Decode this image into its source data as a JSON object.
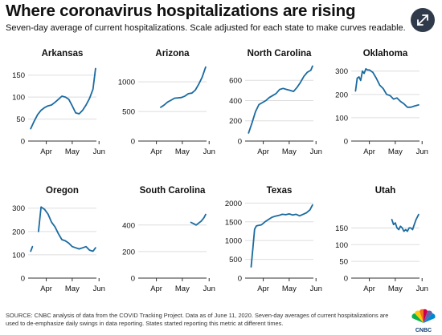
{
  "header": {
    "title": "Where coronavirus hospitalizations are rising",
    "subtitle": "Seven-day average of current hospitalizations. Scale adjusted for each state to make curves readable."
  },
  "controls": {
    "expand_icon": "expand-arrows-icon"
  },
  "footer": {
    "source": "SOURCE: CNBC analysis of data from the COVID Tracking Project. Data as of June 11, 2020. Seven-day averages of current hospitalizations are used to de-emphasize daily swings in data reporting. States started reporting this metric at different times.",
    "logo_text": "CNBC",
    "logo_icon": "peacock-logo-icon"
  },
  "colors": {
    "line": "#1a6aa0",
    "grid": "#dddddd",
    "axis": "#333333",
    "text": "#111111"
  },
  "chart_data": [
    {
      "type": "line",
      "title": "Arkansas",
      "x_ticks": [
        "Apr",
        "May",
        "Jun"
      ],
      "ylim": [
        0,
        175
      ],
      "y_ticks": [
        0,
        50,
        100,
        150
      ],
      "series": [
        {
          "x": [
            "Mar 28",
            "Apr 1",
            "Apr 5",
            "Apr 9",
            "Apr 13",
            "Apr 17",
            "Apr 21",
            "Apr 25",
            "Apr 29",
            "May 3",
            "May 7",
            "May 11",
            "May 15",
            "May 19",
            "May 23",
            "May 27",
            "May 31",
            "Jun 4",
            "Jun 8",
            "Jun 11"
          ],
          "y": [
            28,
            45,
            60,
            70,
            76,
            80,
            82,
            88,
            95,
            102,
            100,
            95,
            80,
            64,
            62,
            70,
            82,
            97,
            118,
            165
          ]
        }
      ]
    },
    {
      "type": "line",
      "title": "Arizona",
      "x_ticks": [
        "Apr",
        "May",
        "Jun"
      ],
      "ylim": [
        0,
        1300
      ],
      "y_ticks": [
        0,
        500,
        1000
      ],
      "series": [
        {
          "x": [
            "Apr 20",
            "Apr 24",
            "Apr 28",
            "May 2",
            "May 6",
            "May 10",
            "May 14",
            "May 18",
            "May 22",
            "May 26",
            "May 30",
            "Jun 3",
            "Jun 7",
            "Jun 11"
          ],
          "y": [
            570,
            610,
            660,
            690,
            725,
            730,
            735,
            760,
            800,
            810,
            860,
            960,
            1080,
            1250
          ]
        }
      ]
    },
    {
      "type": "line",
      "title": "North Carolina",
      "x_ticks": [
        "Apr",
        "May",
        "Jun"
      ],
      "ylim": [
        0,
        760
      ],
      "y_ticks": [
        0,
        200,
        400,
        600
      ],
      "series": [
        {
          "x": [
            "Mar 29",
            "Apr 2",
            "Apr 6",
            "Apr 10",
            "Apr 14",
            "Apr 18",
            "Apr 22",
            "Apr 26",
            "Apr 30",
            "May 4",
            "May 8",
            "May 12",
            "May 16",
            "May 20",
            "May 24",
            "May 28",
            "Jun 1",
            "Jun 5",
            "Jun 9",
            "Jun 11"
          ],
          "y": [
            80,
            180,
            290,
            360,
            380,
            400,
            430,
            450,
            470,
            510,
            520,
            510,
            500,
            490,
            530,
            580,
            640,
            680,
            700,
            740
          ]
        }
      ]
    },
    {
      "type": "line",
      "title": "Oklahoma",
      "x_ticks": [
        "Apr",
        "May",
        "Jun"
      ],
      "ylim": [
        0,
        330
      ],
      "y_ticks": [
        0,
        100,
        200,
        300
      ],
      "series": [
        {
          "x": [
            "Mar 30",
            "Apr 1",
            "Apr 3",
            "Apr 5",
            "Apr 7",
            "Apr 9",
            "Apr 11",
            "Apr 13",
            "Apr 15",
            "Apr 19",
            "Apr 23",
            "Apr 27",
            "May 1",
            "May 5",
            "May 9",
            "May 13",
            "May 17",
            "May 21",
            "May 25",
            "May 29",
            "Jun 2",
            "Jun 6",
            "Jun 11"
          ],
          "y": [
            215,
            270,
            275,
            260,
            300,
            290,
            310,
            305,
            305,
            295,
            270,
            240,
            225,
            200,
            195,
            180,
            185,
            170,
            160,
            145,
            145,
            150,
            155
          ]
        }
      ]
    },
    {
      "type": "line",
      "title": "Oregon",
      "x_ticks": [
        "Apr",
        "May",
        "Jun"
      ],
      "ylim": [
        0,
        330
      ],
      "y_ticks": [
        0,
        100,
        200,
        300
      ],
      "series": [
        {
          "x": [
            "Mar 28",
            "Mar 30"
          ],
          "y": [
            115,
            135
          ]
        },
        {
          "x": [
            "Apr 6",
            "Apr 9",
            "Apr 13",
            "Apr 17",
            "Apr 21",
            "Apr 25",
            "Apr 29",
            "May 3",
            "May 7",
            "May 11",
            "May 15",
            "May 19",
            "May 23",
            "May 27",
            "May 31",
            "Jun 4",
            "Jun 8",
            "Jun 11"
          ],
          "y": [
            200,
            305,
            295,
            275,
            240,
            220,
            190,
            165,
            160,
            150,
            135,
            130,
            125,
            130,
            135,
            120,
            115,
            130
          ]
        }
      ]
    },
    {
      "type": "line",
      "title": "South Carolina",
      "x_ticks": [
        "Apr",
        "May",
        "Jun"
      ],
      "ylim": [
        0,
        580
      ],
      "y_ticks": [
        0,
        200,
        400
      ],
      "series": [
        {
          "x": [
            "May 25",
            "May 28",
            "May 31",
            "Jun 3",
            "Jun 6",
            "Jun 9",
            "Jun 11"
          ],
          "y": [
            420,
            410,
            400,
            415,
            430,
            455,
            480
          ]
        }
      ]
    },
    {
      "type": "line",
      "title": "Texas",
      "x_ticks": [
        "Apr",
        "May",
        "Jun"
      ],
      "ylim": [
        0,
        2050
      ],
      "y_ticks": [
        0,
        500,
        1000,
        1500,
        2000
      ],
      "series": [
        {
          "x": [
            "Apr 1",
            "Apr 3",
            "Apr 5",
            "Apr 7",
            "Apr 9",
            "Apr 13",
            "Apr 17",
            "Apr 21",
            "Apr 25",
            "Apr 29",
            "May 3",
            "May 7",
            "May 11",
            "May 15",
            "May 19",
            "May 23",
            "May 27",
            "May 31",
            "Jun 4",
            "Jun 8",
            "Jun 11"
          ],
          "y": [
            300,
            800,
            1300,
            1390,
            1400,
            1420,
            1500,
            1560,
            1620,
            1650,
            1670,
            1700,
            1690,
            1710,
            1680,
            1700,
            1660,
            1700,
            1740,
            1820,
            1950
          ]
        }
      ]
    },
    {
      "type": "line",
      "title": "Utah",
      "x_ticks": [
        "Apr",
        "May",
        "Jun"
      ],
      "ylim": [
        0,
        230
      ],
      "y_ticks": [
        0,
        50,
        100,
        150
      ],
      "series": [
        {
          "x": [
            "May 11",
            "May 13",
            "May 15",
            "May 17",
            "May 19",
            "May 21",
            "May 23",
            "May 25",
            "May 27",
            "May 29",
            "May 31",
            "Jun 2",
            "Jun 4",
            "Jun 6",
            "Jun 8",
            "Jun 11"
          ],
          "y": [
            175,
            160,
            165,
            150,
            145,
            155,
            150,
            140,
            145,
            140,
            150,
            150,
            145,
            160,
            175,
            190
          ]
        }
      ]
    }
  ]
}
